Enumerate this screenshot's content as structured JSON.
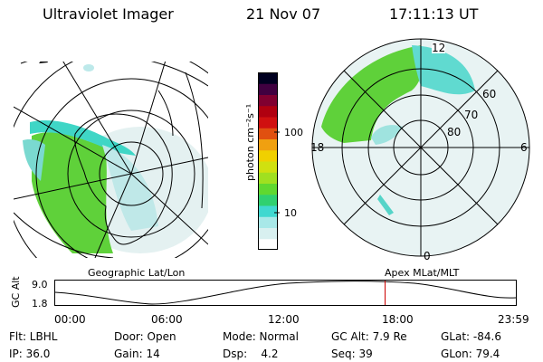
{
  "header": {
    "instrument": "Ultraviolet Imager",
    "date": "21 Nov 07",
    "time": "17:11:13 UT"
  },
  "left_panel": {
    "label": "Geographic Lat/Lon"
  },
  "right_panel": {
    "label": "Apex MLat/MLT",
    "lat_labels": [
      "60",
      "70",
      "80"
    ],
    "mlt_labels": {
      "top": "12",
      "left": "18",
      "right": "6",
      "bottom": "0"
    }
  },
  "colorbar": {
    "unit_label": "photon cm⁻²s⁻¹",
    "ticks": [
      "100",
      "10"
    ],
    "colors": [
      "#ffffff",
      "#d8f0f0",
      "#a8e8e8",
      "#40d8d0",
      "#30d070",
      "#60d830",
      "#a0e020",
      "#d0e010",
      "#f0d000",
      "#f0a010",
      "#e05010",
      "#d01010",
      "#b00010",
      "#800030",
      "#400040",
      "#000020"
    ]
  },
  "orbit_plot": {
    "ylabel": "GC Alt",
    "ytick_top": "9.0",
    "ytick_bottom": "1.8",
    "xticks": [
      "00:00",
      "06:00",
      "12:00",
      "18:00",
      "23:59"
    ],
    "current_time_fraction": 0.7161,
    "marker_color": "#cc0000"
  },
  "status": {
    "row1": [
      "Flt: LBHL",
      "Door: Open",
      "Mode: Normal",
      "GC Alt: 7.9 Re",
      "GLat: -84.6"
    ],
    "row2": [
      "IP: 36.0",
      "Gain: 14",
      "Dsp:    4.2",
      "Seq: 39",
      "GLon: 79.4"
    ]
  }
}
